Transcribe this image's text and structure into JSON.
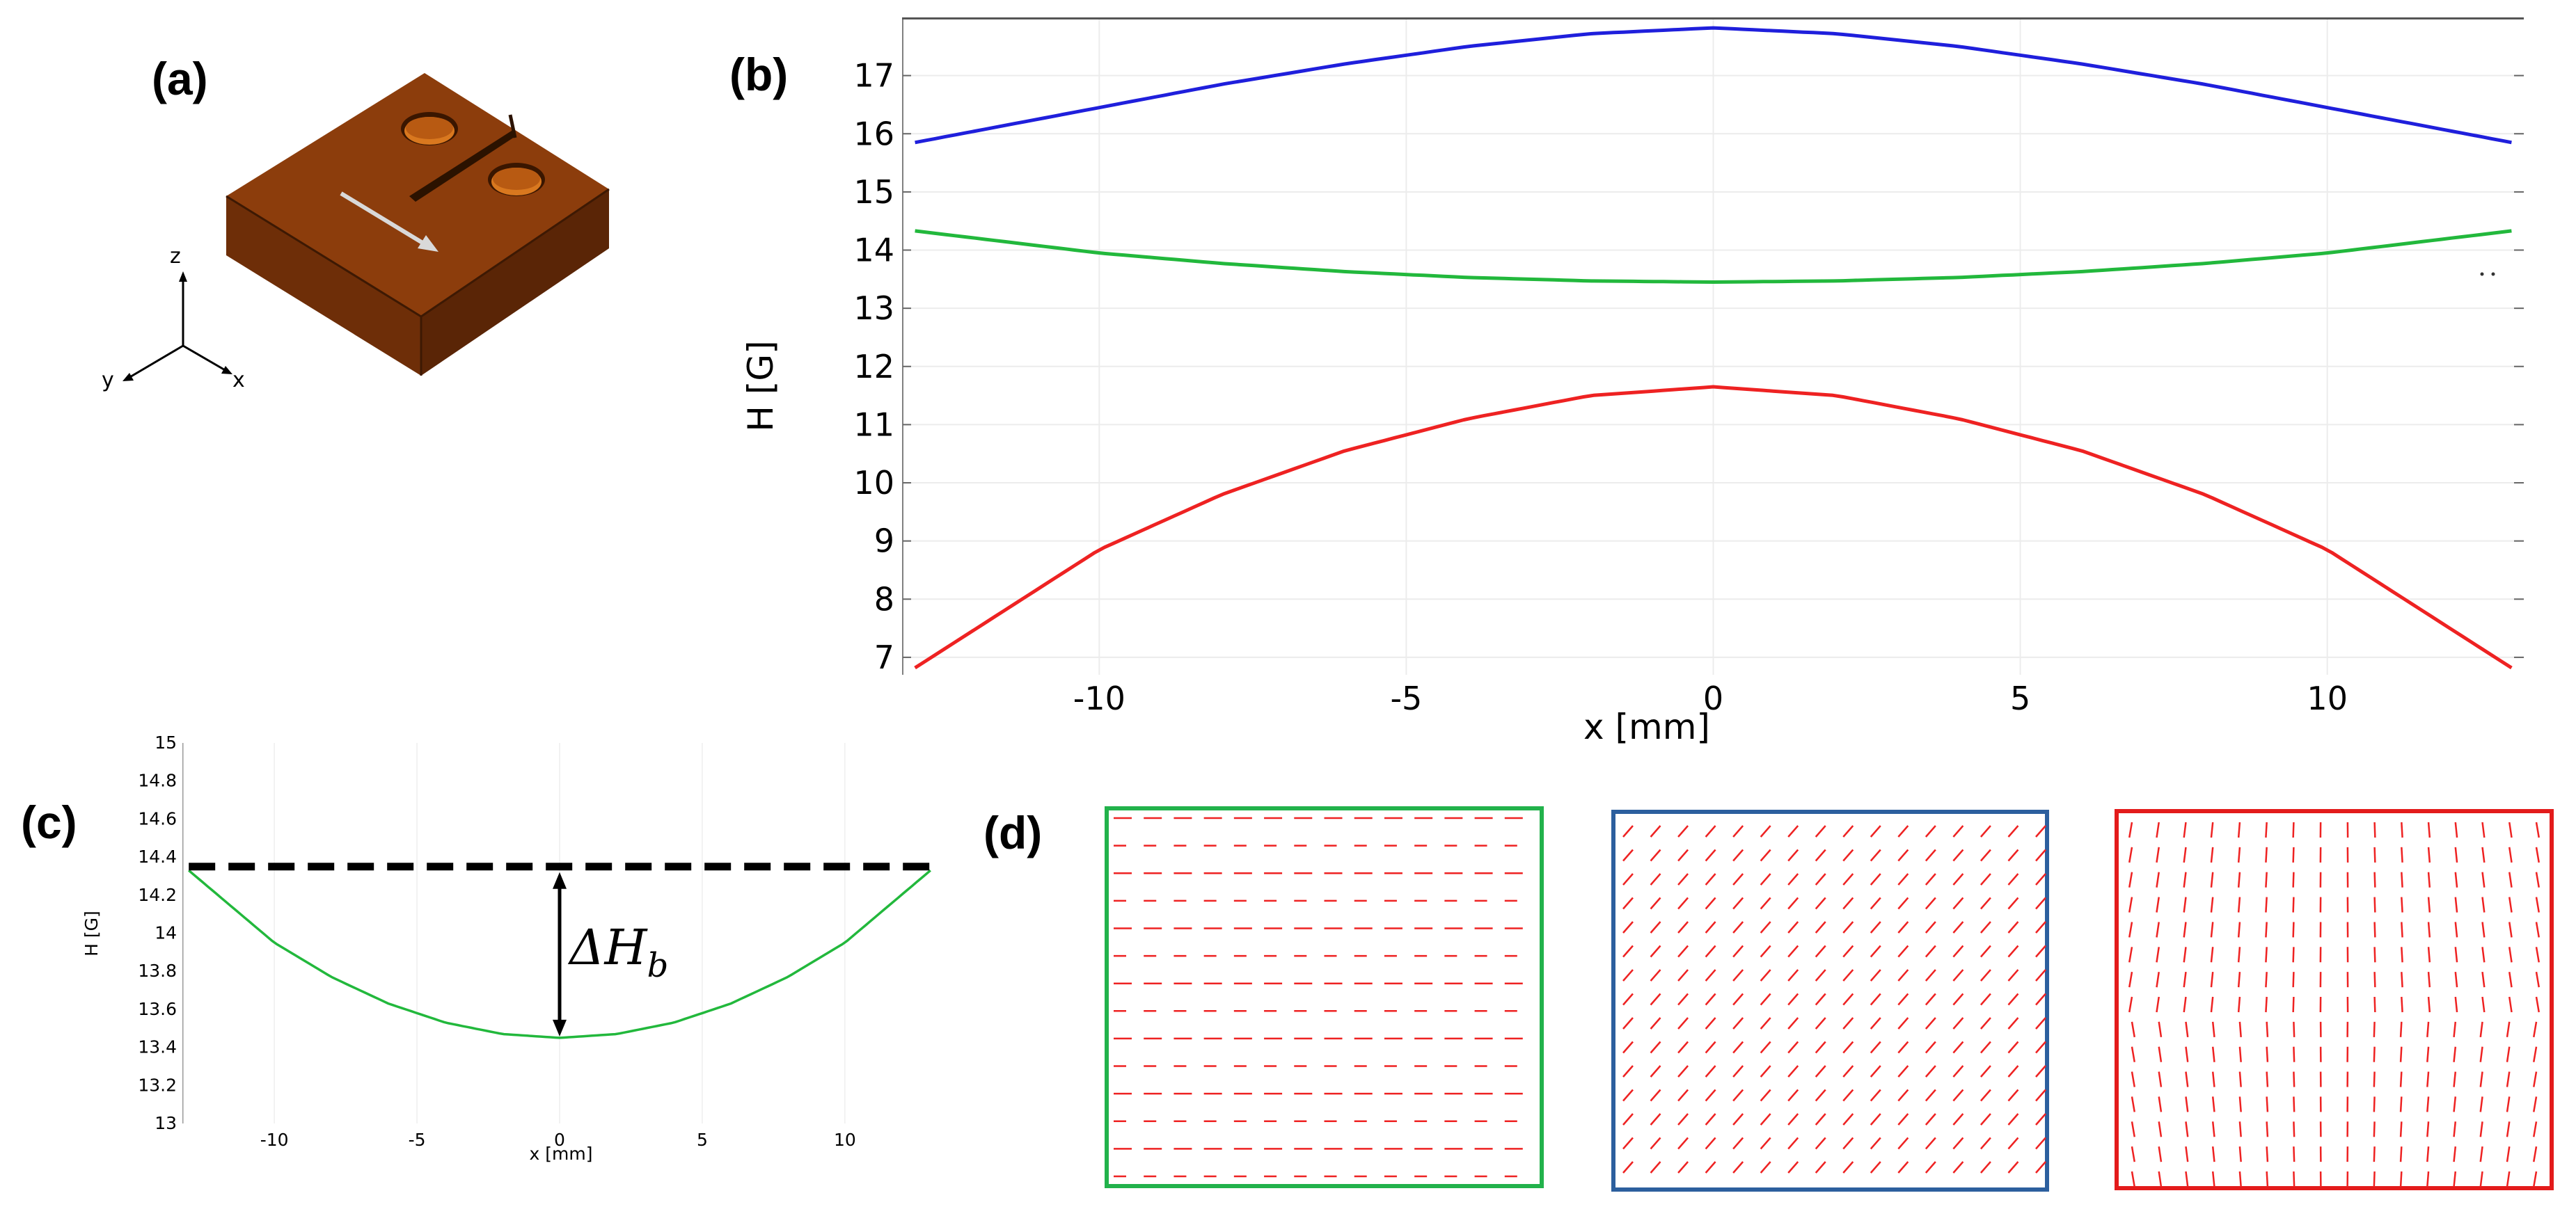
{
  "panels": {
    "a": {
      "letter": "(a)",
      "axes": {
        "z": "z",
        "y": "y",
        "x": "x"
      }
    },
    "b": {
      "letter": "(b)"
    },
    "c": {
      "letter": "(c)",
      "annotation": "ΔH",
      "annotation_sub": "b"
    },
    "d": {
      "letter": "(d)"
    }
  },
  "colors": {
    "blue": "#1f1fdc",
    "green": "#22b83c",
    "red": "#ee2222",
    "frame_green": "#22b24b",
    "frame_blue": "#2c5f9e",
    "frame_red": "#e31b1b",
    "copper": "#8a3c0b",
    "arrow_red": "#ee2222"
  },
  "chart_data": [
    {
      "panel": "b",
      "type": "line",
      "xlabel": "x [mm]",
      "ylabel": "H [G]",
      "xlim": [
        -13.2,
        13.2
      ],
      "ylim": [
        6.7,
        18.0
      ],
      "xticks": [
        -10,
        -5,
        0,
        5,
        10
      ],
      "yticks": [
        7,
        8,
        9,
        10,
        11,
        12,
        13,
        14,
        15,
        16,
        17
      ],
      "grid": true,
      "series": [
        {
          "color": "blue",
          "x": [
            -13,
            -10,
            -8,
            -6,
            -4,
            -2,
            0,
            2,
            4,
            6,
            8,
            10,
            13
          ],
          "y": [
            15.85,
            16.45,
            16.85,
            17.2,
            17.5,
            17.72,
            17.82,
            17.72,
            17.5,
            17.2,
            16.85,
            16.45,
            15.85
          ]
        },
        {
          "color": "green",
          "x": [
            -13,
            -10,
            -8,
            -6,
            -4,
            -2,
            0,
            2,
            4,
            6,
            8,
            10,
            13
          ],
          "y": [
            14.33,
            13.95,
            13.77,
            13.63,
            13.53,
            13.47,
            13.45,
            13.47,
            13.53,
            13.63,
            13.77,
            13.95,
            14.33
          ]
        },
        {
          "color": "red",
          "x": [
            -13,
            -10,
            -8,
            -6,
            -4,
            -2,
            0,
            2,
            4,
            6,
            8,
            10,
            13
          ],
          "y": [
            6.82,
            8.85,
            9.8,
            10.55,
            11.1,
            11.5,
            11.65,
            11.5,
            11.1,
            10.55,
            9.8,
            8.85,
            6.82
          ]
        }
      ]
    },
    {
      "panel": "c",
      "type": "line",
      "xlabel": "x [mm]",
      "ylabel": "H [G]",
      "xlim": [
        -13.2,
        13.2
      ],
      "ylim": [
        13.0,
        15.0
      ],
      "xticks": [
        -10,
        -5,
        0,
        5,
        10
      ],
      "yticks": [
        13,
        13.2,
        13.4,
        13.6,
        13.8,
        14,
        14.2,
        14.4,
        14.6,
        14.8,
        15
      ],
      "grid": true,
      "reference_level": 14.35,
      "series": [
        {
          "color": "green",
          "x": [
            -13,
            -10,
            -8,
            -6,
            -4,
            -2,
            0,
            2,
            4,
            6,
            8,
            10,
            13
          ],
          "y": [
            14.33,
            13.95,
            13.77,
            13.63,
            13.53,
            13.47,
            13.45,
            13.47,
            13.53,
            13.63,
            13.77,
            13.95,
            14.33
          ]
        }
      ]
    }
  ],
  "vector_fields": [
    {
      "frame": "frame_green",
      "pattern": "horizontal"
    },
    {
      "frame": "frame_blue",
      "pattern": "diagonal"
    },
    {
      "frame": "frame_red",
      "pattern": "vertical"
    }
  ]
}
